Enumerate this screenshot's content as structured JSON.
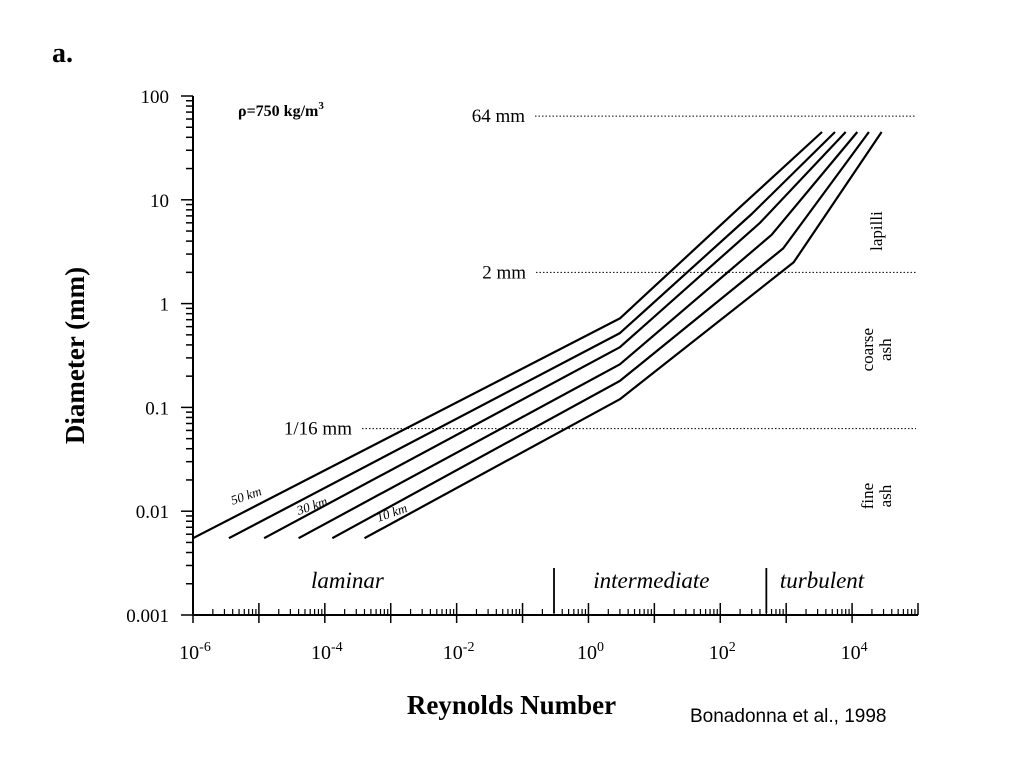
{
  "panel_label": "a.",
  "citation": "Bonadonna et al., 1998",
  "chart_data": {
    "type": "line",
    "title": "",
    "xlabel": "Reynolds Number",
    "ylabel": "Diameter (mm)",
    "x_scale": "log",
    "y_scale": "log",
    "xlim": [
      1e-06,
      100000.0
    ],
    "ylim": [
      0.001,
      100
    ],
    "x_ticks": [
      {
        "value": 1e-06,
        "label_base": "10",
        "label_exp": "-6"
      },
      {
        "value": 0.0001,
        "label_base": "10",
        "label_exp": "-4"
      },
      {
        "value": 0.01,
        "label_base": "10",
        "label_exp": "-2"
      },
      {
        "value": 1,
        "label_base": "10",
        "label_exp": "0"
      },
      {
        "value": 100,
        "label_base": "10",
        "label_exp": "2"
      },
      {
        "value": 10000,
        "label_base": "10",
        "label_exp": "4"
      }
    ],
    "y_ticks": [
      {
        "value": 100,
        "label": "100"
      },
      {
        "value": 10,
        "label": "10"
      },
      {
        "value": 1,
        "label": "1"
      },
      {
        "value": 0.1,
        "label": "0.1"
      },
      {
        "value": 0.01,
        "label": "0.01"
      },
      {
        "value": 0.001,
        "label": "0.001"
      }
    ],
    "density_label": "ρ=750 kg/m",
    "density_exp": "3",
    "reference_lines": [
      {
        "label": "64 mm",
        "y": 64
      },
      {
        "label": "2 mm",
        "y": 2
      },
      {
        "label": "1/16 mm",
        "y": 0.0625
      }
    ],
    "size_classes": [
      {
        "label_lines": [
          "lapilli"
        ],
        "y": 5
      },
      {
        "label_lines": [
          "coarse",
          "ash"
        ],
        "y": 0.36
      },
      {
        "label_lines": [
          "fine",
          "ash"
        ],
        "y": 0.014
      }
    ],
    "regimes": [
      {
        "label": "laminar",
        "x": 0.00022
      },
      {
        "label": "intermediate",
        "x": 9
      },
      {
        "label": "turbulent",
        "x": 3500
      }
    ],
    "regime_boundaries": [
      0.3,
      500
    ],
    "curve_labels": [
      {
        "text": "50 km",
        "x": 4e-06,
        "y": 0.0115
      },
      {
        "text": "30 km",
        "x": 4e-05,
        "y": 0.0092
      },
      {
        "text": "10 km",
        "x": 0.00065,
        "y": 0.0079
      }
    ],
    "series": [
      {
        "x": [
          1e-06,
          3,
          200,
          3500
        ],
        "y": [
          0.0055,
          0.72,
          8.5,
          45
        ]
      },
      {
        "x": [
          3.5e-06,
          3,
          300,
          5500
        ],
        "y": [
          0.0055,
          0.52,
          7.3,
          45
        ]
      },
      {
        "x": [
          1.2e-05,
          3,
          400,
          8000
        ],
        "y": [
          0.0055,
          0.38,
          6.0,
          45
        ]
      },
      {
        "x": [
          4e-05,
          3,
          600,
          12000
        ],
        "y": [
          0.0055,
          0.26,
          4.6,
          45
        ]
      },
      {
        "x": [
          0.00013,
          3,
          900,
          18000
        ],
        "y": [
          0.0055,
          0.18,
          3.4,
          45
        ]
      },
      {
        "x": [
          0.0004,
          3,
          1300,
          28000
        ],
        "y": [
          0.0055,
          0.12,
          2.5,
          45
        ]
      }
    ]
  }
}
